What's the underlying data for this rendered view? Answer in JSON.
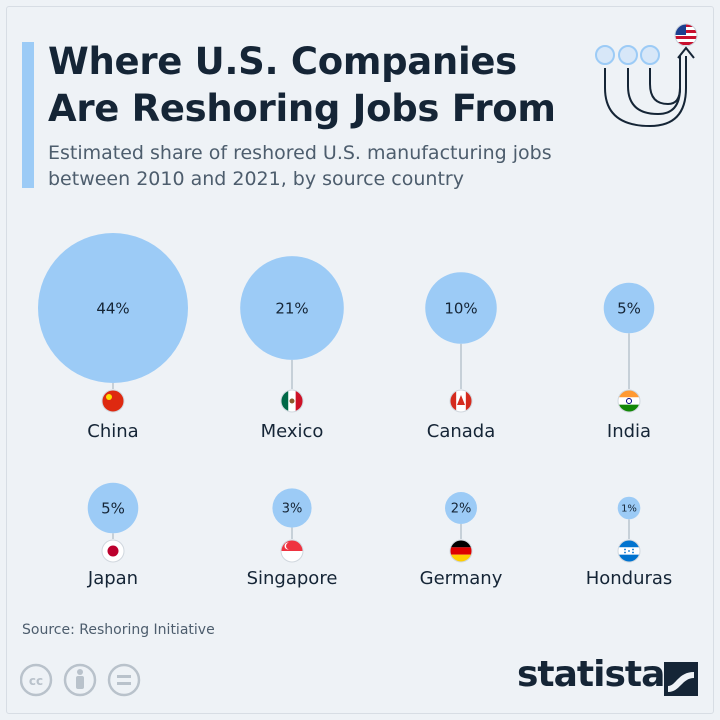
{
  "header": {
    "title_line1": "Where U.S. Companies",
    "title_line2": "Are Reshoring Jobs From",
    "subtitle_line1": "Estimated share of reshored U.S. manufacturing jobs",
    "subtitle_line2": "between 2010 and 2021, by source country"
  },
  "colors": {
    "bubble": "#9ccbf6",
    "accent": "#9ccbf6",
    "text": "#152536",
    "connector": "#b8c4cf"
  },
  "chart_data": {
    "type": "bubble",
    "title": "Where U.S. Companies Are Reshoring Jobs From",
    "subtitle": "Estimated share of reshored U.S. manufacturing jobs between 2010 and 2021, by source country",
    "unit": "%",
    "categories": [
      "China",
      "Mexico",
      "Canada",
      "India",
      "Japan",
      "Singapore",
      "Germany",
      "Honduras"
    ],
    "values": [
      44,
      21,
      10,
      5,
      5,
      3,
      2,
      1
    ],
    "labels": [
      "44%",
      "21%",
      "10%",
      "5%",
      "5%",
      "3%",
      "2%",
      "1%"
    ],
    "flags": [
      "china-flag",
      "mexico-flag",
      "canada-flag",
      "india-flag",
      "japan-flag",
      "singapore-flag",
      "germany-flag",
      "honduras-flag"
    ]
  },
  "footer": {
    "source": "Source: Reshoring Initiative",
    "brand": "statista",
    "license_icons": [
      "cc-icon",
      "by-icon",
      "nd-icon"
    ]
  },
  "header_icon": "reshoring-arrows-us-flag-icon"
}
